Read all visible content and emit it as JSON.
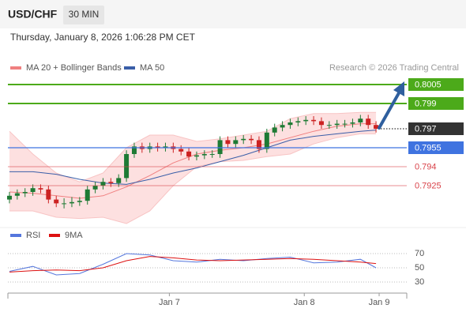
{
  "chart_data": {
    "type": "candlestick",
    "title": "USD/CHF",
    "timeframe": "30 MIN",
    "subtitle": "Thursday, January 8, 2026 1:06:28 PM CET",
    "source": "Research © 2026 Trading Central",
    "up_color": "#1e7a34",
    "down_color": "#cc2222",
    "xlim": [
      -0.2,
      47.6
    ],
    "xticks": [
      {
        "value": 20.5,
        "label": "Jan 7"
      },
      {
        "value": 37.8,
        "label": "Jan 8"
      },
      {
        "value": 47.4,
        "label": "Jan 9"
      }
    ],
    "ylim": [
      0.78965,
      0.80125
    ],
    "candles": [
      [
        0.7914,
        0.792,
        0.7911,
        0.7917
      ],
      [
        0.7917,
        0.7922,
        0.7914,
        0.7919
      ],
      [
        0.7919,
        0.7923,
        0.7916,
        0.792
      ],
      [
        0.792,
        0.7926,
        0.7917,
        0.7923
      ],
      [
        0.7923,
        0.7926,
        0.7919,
        0.7922
      ],
      [
        0.7922,
        0.7925,
        0.7911,
        0.7914
      ],
      [
        0.7914,
        0.7917,
        0.7908,
        0.7911
      ],
      [
        0.7911,
        0.7915,
        0.7907,
        0.7911
      ],
      [
        0.7911,
        0.7916,
        0.7908,
        0.7912
      ],
      [
        0.7912,
        0.7916,
        0.7909,
        0.7913
      ],
      [
        0.7913,
        0.7925,
        0.791,
        0.7922
      ],
      [
        0.7922,
        0.7928,
        0.7919,
        0.7925
      ],
      [
        0.7925,
        0.7931,
        0.7922,
        0.7928
      ],
      [
        0.7928,
        0.7931,
        0.7924,
        0.7927
      ],
      [
        0.7927,
        0.7934,
        0.7924,
        0.7931
      ],
      [
        0.7931,
        0.7953,
        0.7928,
        0.795
      ],
      [
        0.795,
        0.7959,
        0.7947,
        0.7956
      ],
      [
        0.7956,
        0.7959,
        0.7951,
        0.7954
      ],
      [
        0.7954,
        0.7959,
        0.7951,
        0.7956
      ],
      [
        0.7956,
        0.7959,
        0.7952,
        0.7955
      ],
      [
        0.7955,
        0.7959,
        0.7952,
        0.7956
      ],
      [
        0.7956,
        0.7959,
        0.7951,
        0.7954
      ],
      [
        0.7954,
        0.7957,
        0.7949,
        0.7952
      ],
      [
        0.7952,
        0.7955,
        0.7945,
        0.7948
      ],
      [
        0.7948,
        0.7952,
        0.7945,
        0.7949
      ],
      [
        0.7949,
        0.7953,
        0.7946,
        0.795
      ],
      [
        0.795,
        0.7953,
        0.7947,
        0.795
      ],
      [
        0.795,
        0.7964,
        0.7947,
        0.7961
      ],
      [
        0.7961,
        0.7964,
        0.7955,
        0.7958
      ],
      [
        0.7958,
        0.7964,
        0.7955,
        0.7961
      ],
      [
        0.7961,
        0.7965,
        0.7958,
        0.7962
      ],
      [
        0.7962,
        0.7965,
        0.7958,
        0.7961
      ],
      [
        0.7961,
        0.7964,
        0.7951,
        0.7954
      ],
      [
        0.7954,
        0.797,
        0.7951,
        0.7967
      ],
      [
        0.7967,
        0.7974,
        0.7964,
        0.7971
      ],
      [
        0.7971,
        0.7976,
        0.7968,
        0.7973
      ],
      [
        0.7973,
        0.7978,
        0.797,
        0.7975
      ],
      [
        0.7975,
        0.7979,
        0.7972,
        0.7976
      ],
      [
        0.7976,
        0.798,
        0.7973,
        0.7977
      ],
      [
        0.7977,
        0.798,
        0.7973,
        0.7976
      ],
      [
        0.7976,
        0.7979,
        0.797,
        0.7973
      ],
      [
        0.7973,
        0.7976,
        0.797,
        0.7973
      ],
      [
        0.7973,
        0.7977,
        0.797,
        0.7974
      ],
      [
        0.7974,
        0.7977,
        0.7971,
        0.7974
      ],
      [
        0.7974,
        0.7978,
        0.7971,
        0.7975
      ],
      [
        0.7975,
        0.7981,
        0.7972,
        0.7978
      ],
      [
        0.7978,
        0.7981,
        0.797,
        0.7973
      ],
      [
        0.7973,
        0.7976,
        0.7967,
        0.797
      ]
    ],
    "series": [
      {
        "name": "MA 20 + Bollinger Bands",
        "color": "#f08080",
        "band_color": "#fde0e0",
        "x": [
          0,
          3,
          6,
          9,
          12,
          15,
          18,
          21,
          24,
          27,
          30,
          33,
          36,
          39,
          42,
          45,
          47
        ],
        "values": [
          0.792,
          0.7919,
          0.7917,
          0.7915,
          0.7917,
          0.7924,
          0.7933,
          0.7943,
          0.795,
          0.7953,
          0.7955,
          0.7958,
          0.7963,
          0.7968,
          0.7972,
          0.7974,
          0.7974
        ],
        "upper": [
          0.7968,
          0.795,
          0.7935,
          0.7928,
          0.7935,
          0.7955,
          0.7965,
          0.7965,
          0.796,
          0.7962,
          0.7965,
          0.7968,
          0.7978,
          0.7982,
          0.7982,
          0.7983,
          0.7983
        ],
        "lower": [
          0.7905,
          0.7905,
          0.79,
          0.7899,
          0.79,
          0.7895,
          0.7905,
          0.7925,
          0.794,
          0.7944,
          0.7945,
          0.7948,
          0.795,
          0.7958,
          0.7963,
          0.7966,
          0.7966
        ]
      },
      {
        "name": "MA 50",
        "color": "#3a5ea8",
        "x": [
          0,
          3,
          6,
          9,
          12,
          15,
          18,
          21,
          24,
          27,
          30,
          33,
          36,
          39,
          42,
          45,
          47
        ],
        "values": [
          0.7936,
          0.7936,
          0.7934,
          0.793,
          0.7927,
          0.7926,
          0.793,
          0.7935,
          0.7939,
          0.7944,
          0.7949,
          0.7955,
          0.7961,
          0.7964,
          0.7966,
          0.7968,
          0.7969
        ]
      }
    ],
    "levels": [
      {
        "value": 0.8005,
        "color": "#4caa1a",
        "boxed": true,
        "line": "thick"
      },
      {
        "value": 0.799,
        "color": "#4caa1a",
        "boxed": true,
        "line": "thick"
      },
      {
        "value": 0.797,
        "color": "#333333",
        "boxed": true,
        "line": "dotted"
      },
      {
        "value": 0.7955,
        "color": "#3f73e0",
        "boxed": true,
        "line": "solid"
      },
      {
        "value": 0.794,
        "color": "#d9434a",
        "boxed": false,
        "line": "thin"
      },
      {
        "value": 0.7925,
        "color": "#d9434a",
        "boxed": false,
        "line": "thin"
      }
    ],
    "rsi": {
      "ylim": [
        20,
        80
      ],
      "yticks": [
        70,
        50,
        30
      ],
      "series": [
        {
          "name": "RSI",
          "color": "#5577dd",
          "x": [
            0,
            3,
            6,
            9,
            12,
            15,
            18,
            21,
            24,
            27,
            30,
            33,
            36,
            39,
            42,
            45,
            47
          ],
          "values": [
            45,
            52,
            40,
            42,
            55,
            70,
            68,
            60,
            58,
            62,
            60,
            63,
            65,
            57,
            58,
            62,
            50
          ]
        },
        {
          "name": "9MA",
          "color": "#dd1111",
          "x": [
            0,
            3,
            6,
            9,
            12,
            15,
            18,
            21,
            24,
            27,
            30,
            33,
            36,
            39,
            42,
            45,
            47
          ],
          "values": [
            44,
            46,
            47,
            46,
            50,
            60,
            66,
            64,
            61,
            60,
            61,
            62,
            63,
            62,
            60,
            58,
            56
          ]
        }
      ]
    }
  }
}
